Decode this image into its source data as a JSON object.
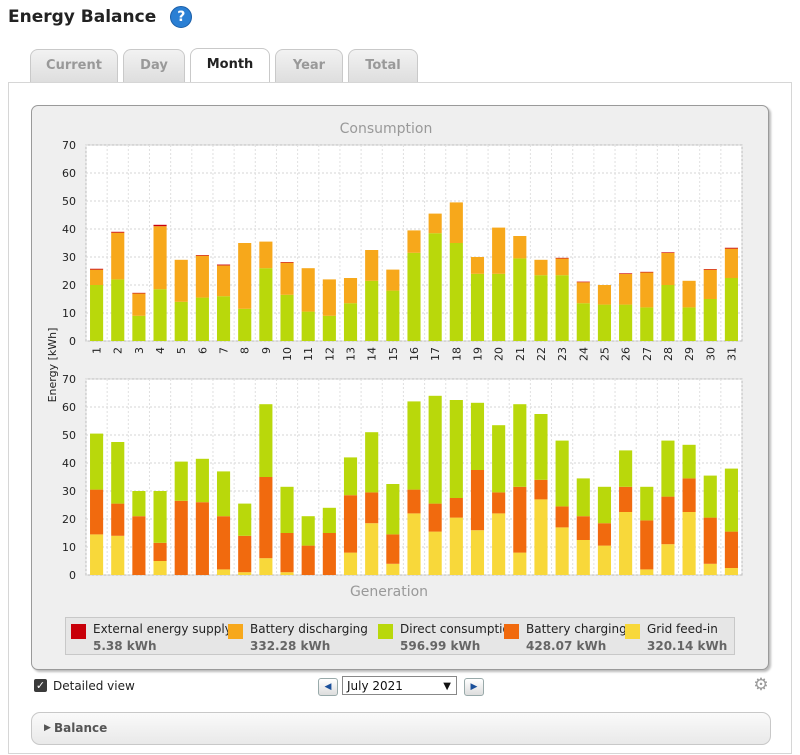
{
  "header": {
    "title": "Energy Balance",
    "help_icon": "?"
  },
  "tabs": [
    {
      "label": "Current",
      "active": false
    },
    {
      "label": "Day",
      "active": false
    },
    {
      "label": "Month",
      "active": true
    },
    {
      "label": "Year",
      "active": false
    },
    {
      "label": "Total",
      "active": false
    }
  ],
  "colors": {
    "external_supply": "#c8000a",
    "battery_discharging": "#f7a81b",
    "direct_consumption": "#b9d80b",
    "battery_charging": "#f16a0e",
    "grid_feed_in": "#f8d83a"
  },
  "chart_data": [
    {
      "type": "bar",
      "stacked": true,
      "title": "Consumption",
      "ylabel": "Energy [kWh]",
      "ylim": [
        0,
        70
      ],
      "yticks": [
        0,
        10,
        20,
        30,
        40,
        50,
        60,
        70
      ],
      "grid": true,
      "categories": [
        "1",
        "2",
        "3",
        "4",
        "5",
        "6",
        "7",
        "8",
        "9",
        "10",
        "11",
        "12",
        "13",
        "14",
        "15",
        "16",
        "17",
        "18",
        "19",
        "20",
        "21",
        "22",
        "23",
        "24",
        "25",
        "26",
        "27",
        "28",
        "29",
        "30",
        "31"
      ],
      "series": [
        {
          "name": "Direct consumption",
          "values": [
            20,
            22,
            9,
            18.5,
            14,
            15.5,
            16,
            11.5,
            26,
            16.5,
            10.5,
            9,
            13.5,
            21.5,
            18,
            31.5,
            38.5,
            35,
            24,
            24,
            29.5,
            23.5,
            23.5,
            13.5,
            13,
            13,
            12,
            20,
            12,
            15,
            22.5
          ]
        },
        {
          "name": "Battery discharging",
          "values": [
            5.5,
            16.7,
            8,
            22.5,
            15,
            15,
            11,
            23.5,
            9.5,
            11.5,
            15.5,
            13,
            9,
            11,
            7.5,
            8,
            7,
            14.5,
            6,
            16.5,
            8,
            5.5,
            6,
            7.5,
            7,
            11,
            12.5,
            11.5,
            9.5,
            10.5,
            10.5
          ]
        },
        {
          "name": "External energy supply",
          "values": [
            0.3,
            0.3,
            0.2,
            0.5,
            0,
            0.2,
            0.3,
            0,
            0,
            0.2,
            0,
            0,
            0,
            0,
            0,
            0,
            0,
            0,
            0,
            0,
            0,
            0,
            0.2,
            0.2,
            0,
            0.2,
            0.2,
            0.2,
            0,
            0.2,
            0.3
          ]
        }
      ]
    },
    {
      "type": "bar",
      "stacked": true,
      "title": "Generation",
      "ylabel": "Energy [kWh]",
      "ylim": [
        0,
        70
      ],
      "yticks": [
        0,
        10,
        20,
        30,
        40,
        50,
        60,
        70
      ],
      "grid": true,
      "categories": [
        "1",
        "2",
        "3",
        "4",
        "5",
        "6",
        "7",
        "8",
        "9",
        "10",
        "11",
        "12",
        "13",
        "14",
        "15",
        "16",
        "17",
        "18",
        "19",
        "20",
        "21",
        "22",
        "23",
        "24",
        "25",
        "26",
        "27",
        "28",
        "29",
        "30",
        "31"
      ],
      "series": [
        {
          "name": "Grid feed-in",
          "values": [
            14.5,
            14,
            0,
            5,
            0,
            0,
            2,
            1,
            6,
            1,
            0,
            0,
            8,
            18.5,
            4,
            22,
            15.5,
            20.5,
            16,
            22,
            8,
            27,
            17,
            12.5,
            10.5,
            22.5,
            2,
            11,
            22.5,
            4,
            2.5
          ]
        },
        {
          "name": "Battery charging",
          "values": [
            16,
            11.5,
            21,
            6.5,
            26.5,
            26,
            19,
            13,
            29,
            14,
            10.5,
            15,
            20.5,
            11,
            10.5,
            8.5,
            10,
            7,
            21.5,
            7.5,
            23.5,
            7,
            7.5,
            8.5,
            8,
            9,
            17.5,
            17,
            12,
            16.5,
            13
          ]
        },
        {
          "name": "Direct consumption",
          "values": [
            20,
            22,
            9,
            18.5,
            14,
            15.5,
            16,
            11.5,
            26,
            16.5,
            10.5,
            9,
            13.5,
            21.5,
            18,
            31.5,
            38.5,
            35,
            24,
            24,
            29.5,
            23.5,
            23.5,
            13.5,
            13,
            13,
            12,
            20,
            12,
            15,
            22.5
          ]
        }
      ]
    }
  ],
  "legend": [
    {
      "label": "External energy supply",
      "value": "5.38 kWh",
      "color": "#c8000a"
    },
    {
      "label": "Battery discharging",
      "value": "332.28 kWh",
      "color": "#f7a81b"
    },
    {
      "label": "Direct consumption",
      "value": "596.99 kWh",
      "color": "#b9d80b"
    },
    {
      "label": "Battery charging",
      "value": "428.07 kWh",
      "color": "#f16a0e"
    },
    {
      "label": "Grid feed-in",
      "value": "320.14 kWh",
      "color": "#f8d83a"
    }
  ],
  "controls": {
    "detailed_view_label": "Detailed view",
    "detailed_view_checked": true,
    "month": "July 2021",
    "prev_icon": "◀",
    "next_icon": "▶",
    "settings_icon": "gear"
  },
  "balance": {
    "label": "Balance",
    "expand_icon": "▶"
  }
}
